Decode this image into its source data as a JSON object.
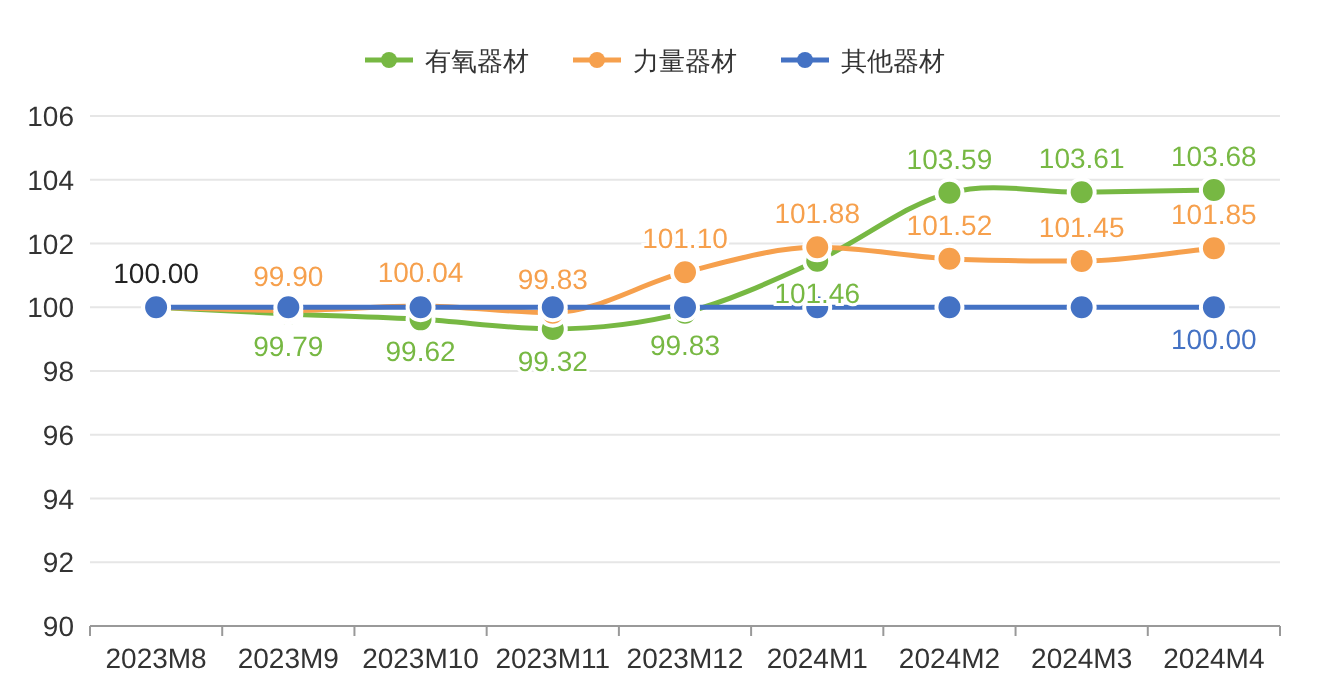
{
  "chart_data": {
    "type": "line",
    "categories": [
      "2023M8",
      "2023M9",
      "2023M10",
      "2023M11",
      "2023M12",
      "2024M1",
      "2024M2",
      "2024M3",
      "2024M4"
    ],
    "series": [
      {
        "name": "有氧器材",
        "color": "#77b843",
        "values": [
          100,
          99.79,
          99.62,
          99.32,
          99.83,
          101.46,
          103.59,
          103.61,
          103.68
        ],
        "value_labels": [
          null,
          "99.79",
          "99.62",
          "99.32",
          "99.83",
          "101.46",
          "103.59",
          "103.61",
          "103.68"
        ]
      },
      {
        "name": "力量器材",
        "color": "#f6a04d",
        "values": [
          100,
          99.9,
          100.04,
          99.83,
          101.1,
          101.88,
          101.52,
          101.45,
          101.85
        ],
        "value_labels": [
          null,
          "99.90",
          "100.04",
          "99.83",
          "101.10",
          "101.88",
          "101.52",
          "101.45",
          "101.85"
        ]
      },
      {
        "name": "其他器材",
        "color": "#4472c4",
        "values": [
          100,
          100,
          100,
          100,
          100,
          100,
          100,
          100,
          100
        ],
        "value_labels": [
          null,
          null,
          null,
          null,
          null,
          null,
          null,
          null,
          "100.00"
        ]
      }
    ],
    "annotations": [
      {
        "text": "100.00",
        "x": "2023M8",
        "y": 100
      }
    ],
    "ylim": [
      90,
      106
    ],
    "yticks": [
      90,
      92,
      94,
      96,
      98,
      100,
      102,
      104,
      106
    ],
    "grid": "y",
    "legend": "top",
    "marker": "circle",
    "line_style": "solid"
  }
}
